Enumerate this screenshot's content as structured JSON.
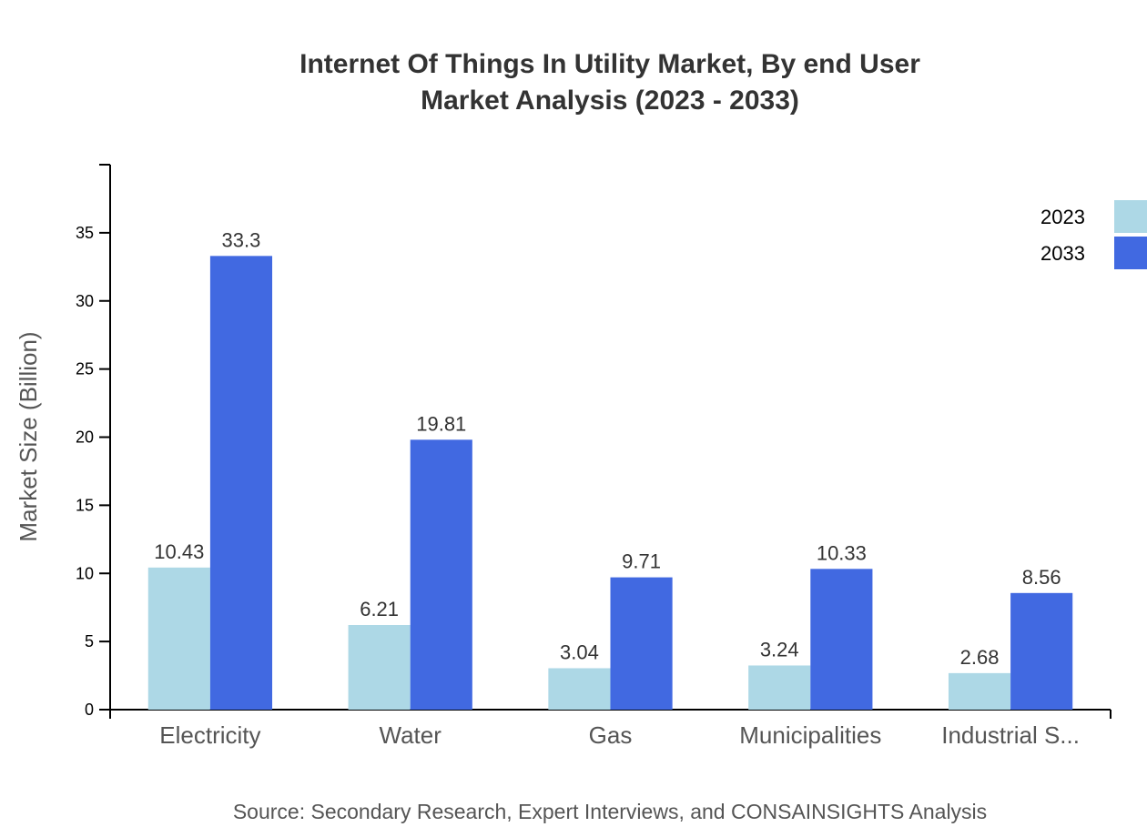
{
  "chart_data": {
    "type": "bar",
    "title_lines": [
      "Internet Of Things In Utility Market, By end User",
      "Market Analysis (2023 - 2033)"
    ],
    "ylabel": "Market Size (Billion)",
    "xlabel": "",
    "ylim": [
      0,
      40
    ],
    "yticks": [
      0,
      5,
      10,
      15,
      20,
      25,
      30,
      35
    ],
    "categories": [
      "Electricity",
      "Water",
      "Gas",
      "Municipalities",
      "Industrial S..."
    ],
    "series": [
      {
        "name": "2023",
        "color": "#ADD8E6",
        "values": [
          10.43,
          6.21,
          3.04,
          3.24,
          2.68
        ]
      },
      {
        "name": "2033",
        "color": "#4169E1",
        "values": [
          33.3,
          19.81,
          9.71,
          10.33,
          8.56
        ]
      }
    ],
    "legend_position": "top-right",
    "grid": false,
    "source": "Source: Secondary Research, Expert Interviews, and CONSAINSIGHTS Analysis"
  }
}
